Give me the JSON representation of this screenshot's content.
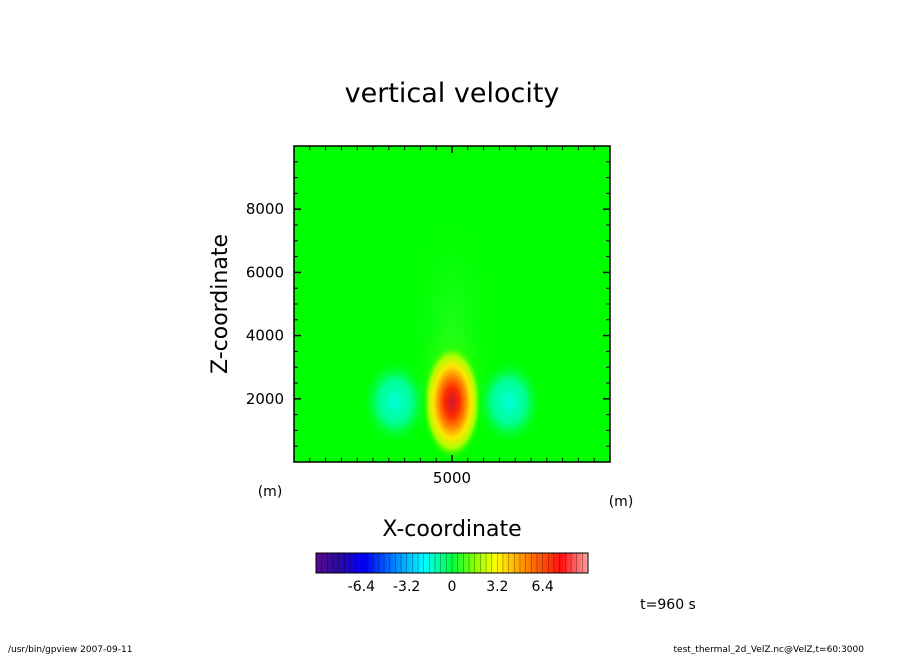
{
  "chart_data": {
    "type": "heatmap",
    "title": "vertical velocity",
    "xlabel": "X-coordinate",
    "ylabel": "Z-coordinate",
    "x_units": "(m)",
    "y_units": "(m)",
    "xlim": [
      0,
      10000
    ],
    "ylim": [
      0,
      10000
    ],
    "x_ticks": [
      5000
    ],
    "y_ticks": [
      2000,
      4000,
      6000,
      8000
    ],
    "colorbar": {
      "range": [
        -9.6,
        9.6
      ],
      "tick_values": [
        -6.4,
        -3.2,
        0,
        3.2,
        6.4
      ],
      "tick_labels": [
        "-6.4",
        "-3.2",
        "0",
        "3.2",
        "6.4"
      ]
    },
    "features": [
      {
        "kind": "updraft",
        "x": 5000,
        "z": 1900,
        "peak_value": 8.5
      },
      {
        "kind": "downdraft",
        "x": 3200,
        "z": 1900,
        "peak_value": -2.0
      },
      {
        "kind": "downdraft",
        "x": 6800,
        "z": 1900,
        "peak_value": -2.0
      }
    ],
    "time_label": "t=960 s"
  },
  "footer": {
    "left": "/usr/bin/gpview   2007-09-11",
    "right": "test_thermal_2d_VelZ.nc@VelZ,t=60:3000"
  }
}
